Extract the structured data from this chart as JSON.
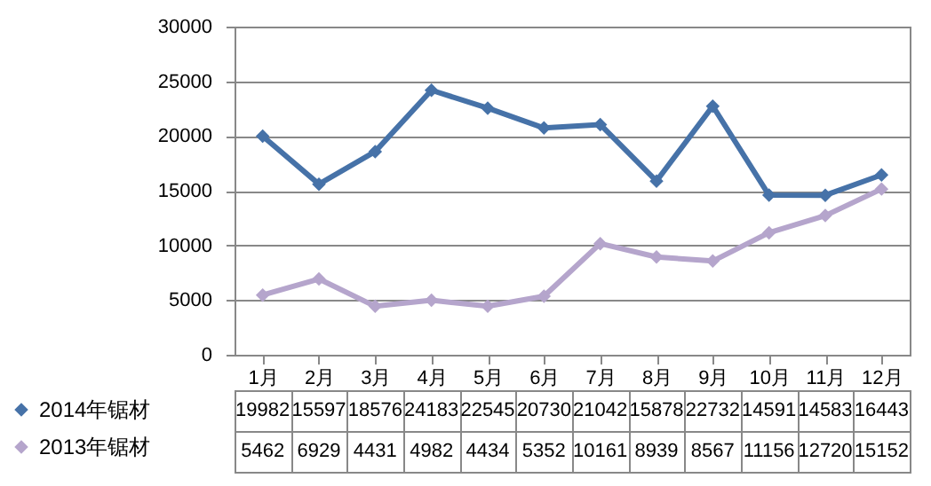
{
  "chart_data": {
    "type": "line",
    "categories": [
      "1月",
      "2月",
      "3月",
      "4月",
      "5月",
      "6月",
      "7月",
      "8月",
      "9月",
      "10月",
      "11月",
      "12月"
    ],
    "series": [
      {
        "name": "2014年锯材",
        "color": "#4672a8",
        "values": [
          19982,
          15597,
          18576,
          24183,
          22545,
          20730,
          21042,
          15878,
          22732,
          14591,
          14583,
          16443
        ]
      },
      {
        "name": "2013年锯材",
        "color": "#b5a5cc",
        "values": [
          5462,
          6929,
          4431,
          4982,
          4434,
          5352,
          10161,
          8939,
          8567,
          11156,
          12720,
          15152
        ]
      }
    ],
    "ylim": [
      0,
      30000
    ],
    "yticks": [
      0,
      5000,
      10000,
      15000,
      20000,
      25000,
      30000
    ],
    "grid": "y",
    "marker": "diamond",
    "legend": "bottom",
    "data_labels": true
  }
}
